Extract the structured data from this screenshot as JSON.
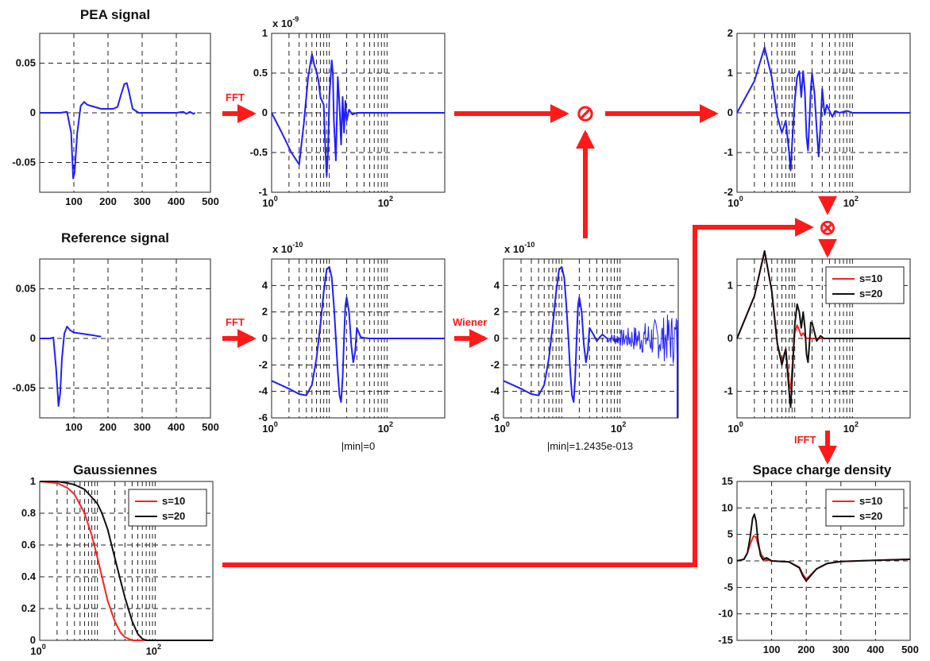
{
  "colors": {
    "blue": "#1f1fff",
    "red": "#ff2020",
    "black": "#111111",
    "arrow": "#ff1a1a"
  },
  "titles": {
    "pea": "PEA signal",
    "reference": "Reference signal",
    "gaussiennes": "Gaussiennes",
    "space_charge": "Space charge density"
  },
  "operations": {
    "fft1": "FFT",
    "fft2": "FFT",
    "wiener": "Wiener",
    "ifft": "IFFT"
  },
  "operators": {
    "divide": "⊘",
    "multiply": "⊗"
  },
  "notes": {
    "min_ref_fft": "|min|=0",
    "min_wiener": "|min|=1.2435e-013"
  },
  "multipliers": {
    "pea_fft": "x 10",
    "pea_fft_exp": "-9",
    "ref_fft": "x 10",
    "ref_fft_exp": "-10",
    "wiener": "x 10",
    "wiener_exp": "-10"
  },
  "legend": {
    "s10": "s=10",
    "s20": "s=20"
  },
  "ticks": {
    "pea_y": [
      "0.05",
      "0",
      "-0.05"
    ],
    "time_x": [
      "100",
      "200",
      "300",
      "400",
      "500"
    ],
    "pea_fft_y": [
      "1",
      "0.5",
      "0",
      "-0.5",
      "-1"
    ],
    "log_base": "10",
    "log_x": [
      "0",
      "2"
    ],
    "ref_y": [
      "0.05",
      "0",
      "-0.05"
    ],
    "ref_fft_y": [
      "4",
      "2",
      "0",
      "-2",
      "-4",
      "-6"
    ],
    "gauss_y": [
      "1",
      "0.8",
      "0.6",
      "0.4",
      "0.2",
      "0"
    ],
    "ratio_y": [
      "2",
      "1",
      "0",
      "-1",
      "-2"
    ],
    "filtered_y": [
      "1",
      "0",
      "-1"
    ],
    "scd_y": [
      "15",
      "10",
      "5",
      "0",
      "-5",
      "-10",
      "-15"
    ]
  },
  "chart_data": [
    {
      "type": "line",
      "title": "PEA signal",
      "xlim": [
        0,
        500
      ],
      "ylim": [
        -0.08,
        0.08
      ],
      "grid": true,
      "series": [
        {
          "color": "#1f1fff",
          "x": [
            0,
            60,
            80,
            92,
            98,
            102,
            110,
            120,
            130,
            140,
            160,
            180,
            200,
            215,
            228,
            238,
            248,
            255,
            262,
            272,
            290,
            320,
            360,
            400,
            420,
            430,
            440,
            450,
            455
          ],
          "y": [
            0,
            0,
            0.001,
            -0.02,
            -0.066,
            -0.06,
            -0.02,
            0.007,
            0.011,
            0.008,
            0.006,
            0.004,
            0.004,
            0.004,
            0.006,
            0.018,
            0.029,
            0.03,
            0.02,
            0.004,
            0,
            0,
            0,
            0,
            0.001,
            -0.001,
            0.001,
            -0.001,
            0
          ]
        }
      ]
    },
    {
      "type": "line",
      "title": "",
      "xscale": "log",
      "xlim": [
        1,
        1000
      ],
      "ylim": [
        -1,
        1
      ],
      "multiplier": "x 10^-9",
      "grid": true,
      "series": [
        {
          "color": "#1f1fff",
          "x": [
            1,
            1.5,
            2.2,
            3,
            3.6,
            4.3,
            5,
            5.5,
            6,
            6.5,
            7,
            8,
            8.5,
            9,
            9.5,
            10,
            11,
            11.5,
            12,
            13,
            13.5,
            14,
            15,
            16,
            17,
            18,
            19,
            20,
            22,
            25,
            30,
            40,
            1000
          ],
          "y": [
            0,
            -0.25,
            -0.5,
            -0.65,
            -0.15,
            0.45,
            0.74,
            0.6,
            0.52,
            0.4,
            0.2,
            0.1,
            -0.4,
            -0.8,
            -0.5,
            0.2,
            0.66,
            0.5,
            -0.1,
            -0.6,
            -0.1,
            0.45,
            0.1,
            -0.4,
            0.2,
            -0.25,
            0.15,
            -0.1,
            0.04,
            -0.02,
            0,
            0,
            0
          ]
        }
      ]
    },
    {
      "type": "line",
      "title": "",
      "xscale": "log",
      "xlim": [
        1,
        1000
      ],
      "ylim": [
        -2,
        2
      ],
      "grid": true,
      "series": [
        {
          "color": "#1f1fff",
          "x": [
            1,
            2,
            3,
            4,
            5,
            6,
            7,
            8,
            8.5,
            9,
            10,
            11,
            12,
            13,
            14,
            15,
            16,
            17,
            18,
            19,
            20,
            22,
            24,
            26,
            28,
            30,
            33,
            36,
            40,
            45,
            50,
            60,
            80,
            100,
            150,
            300,
            1000
          ],
          "y": [
            0,
            0.8,
            1.65,
            0.9,
            -0.1,
            -0.5,
            -0.2,
            -1.0,
            -1.45,
            -0.8,
            0.3,
            0.9,
            1.05,
            0.4,
            1.05,
            0.5,
            -0.6,
            -0.95,
            -0.2,
            0.6,
            1.0,
            0.5,
            -0.4,
            -1.1,
            -0.3,
            0.6,
            -0.05,
            0.2,
            0.05,
            -0.1,
            0.05,
            0,
            0.05,
            0,
            0,
            0,
            0
          ]
        }
      ]
    },
    {
      "type": "line",
      "title": "Reference signal",
      "xlim": [
        0,
        500
      ],
      "ylim": [
        -0.08,
        0.08
      ],
      "grid": true,
      "series": [
        {
          "color": "#1f1fff",
          "x": [
            0,
            30,
            40,
            48,
            55,
            60,
            65,
            72,
            80,
            90,
            100,
            120,
            140,
            160,
            175,
            180
          ],
          "y": [
            0,
            0,
            0.001,
            -0.03,
            -0.068,
            -0.055,
            -0.02,
            0.005,
            0.012,
            0.008,
            0.006,
            0.005,
            0.004,
            0.003,
            0.002,
            0.002
          ]
        }
      ]
    },
    {
      "type": "line",
      "title": "",
      "xscale": "log",
      "xlim": [
        1,
        1000
      ],
      "ylim": [
        -6,
        6
      ],
      "multiplier": "x 10^-10",
      "grid": true,
      "series": [
        {
          "color": "#1f1fff",
          "x": [
            1,
            2,
            3,
            4,
            5,
            6,
            7,
            8,
            9,
            10,
            11,
            12,
            13,
            14,
            15,
            16,
            17,
            18,
            19,
            20,
            22,
            24,
            26,
            28,
            30,
            35,
            40,
            50,
            1000
          ],
          "y": [
            -3.2,
            -3.8,
            -4.2,
            -4.3,
            -3.5,
            -1.5,
            1.0,
            3.5,
            5.2,
            5.4,
            4.6,
            2.5,
            0,
            -2.5,
            -4.3,
            -4.8,
            -3.0,
            0,
            2.5,
            3.1,
            2.0,
            -0.5,
            -1.8,
            -1.0,
            0.8,
            0.1,
            0.05,
            0,
            0
          ]
        }
      ]
    },
    {
      "type": "line",
      "title": "",
      "xscale": "log",
      "xlim": [
        1,
        1000
      ],
      "ylim": [
        -6,
        6
      ],
      "multiplier": "x 10^-10",
      "grid": true,
      "series": [
        {
          "color": "#1f1fff",
          "x": [
            1,
            2,
            3,
            4,
            5,
            6,
            7,
            8,
            9,
            10,
            11,
            12,
            13,
            14,
            15,
            16,
            17,
            18,
            19,
            20,
            22,
            24,
            26,
            28,
            30,
            35,
            40,
            45,
            50,
            60
          ],
          "y": [
            -3.2,
            -3.8,
            -4.2,
            -4.3,
            -3.5,
            -1.5,
            1.0,
            3.5,
            5.2,
            5.4,
            4.6,
            2.5,
            0,
            -2.5,
            -4.3,
            -4.8,
            -3.0,
            0,
            2.5,
            3.1,
            2.0,
            -0.5,
            -1.8,
            -1.0,
            0.8,
            0.3,
            -0.2,
            0.1,
            0.3,
            0
          ]
        }
      ]
    },
    {
      "type": "line",
      "title": "Gaussiennes",
      "xscale": "log",
      "xlim": [
        1,
        1000
      ],
      "ylim": [
        0,
        1
      ],
      "grid": true,
      "legend": "top-right",
      "series": [
        {
          "name": "s=10",
          "color": "#ff2020",
          "x": [
            1,
            2,
            3,
            4,
            6,
            8,
            10,
            12,
            15,
            20,
            25,
            30,
            40,
            50,
            70,
            100,
            1000
          ],
          "y": [
            1,
            0.99,
            0.96,
            0.92,
            0.8,
            0.66,
            0.52,
            0.4,
            0.25,
            0.12,
            0.05,
            0.02,
            0,
            0,
            0,
            0,
            0
          ]
        },
        {
          "name": "s=20",
          "color": "#111111",
          "x": [
            1,
            2,
            3,
            4,
            6,
            8,
            10,
            12,
            15,
            20,
            25,
            30,
            40,
            50,
            60,
            70,
            100,
            1000
          ],
          "y": [
            1,
            1,
            0.99,
            0.98,
            0.95,
            0.9,
            0.86,
            0.8,
            0.7,
            0.52,
            0.38,
            0.27,
            0.12,
            0.04,
            0.01,
            0,
            0,
            0
          ]
        }
      ]
    },
    {
      "type": "line",
      "title": "",
      "xscale": "log",
      "xlim": [
        1,
        1000
      ],
      "ylim": [
        -1.5,
        1.5
      ],
      "grid": true,
      "legend": "top-right",
      "series": [
        {
          "name": "s=10",
          "color": "#ff2020",
          "x": [
            1,
            2,
            3,
            4,
            5,
            6,
            7,
            8,
            8.5,
            9,
            10,
            11,
            12,
            13,
            14,
            16,
            20,
            25,
            30,
            40,
            1000
          ],
          "y": [
            0,
            0.8,
            1.65,
            0.9,
            -0.1,
            -0.45,
            -0.2,
            -0.85,
            -0.95,
            -0.6,
            0.1,
            0.25,
            0.15,
            0.05,
            0.1,
            0,
            0,
            0,
            0,
            0,
            0
          ]
        },
        {
          "name": "s=20",
          "color": "#111111",
          "x": [
            1,
            2,
            3,
            4,
            5,
            6,
            7,
            8,
            8.5,
            9,
            10,
            11,
            12,
            13,
            14,
            15,
            16,
            17,
            18,
            19,
            20,
            24,
            28,
            32,
            40,
            1000
          ],
          "y": [
            0,
            0.8,
            1.65,
            0.9,
            -0.1,
            -0.5,
            -0.2,
            -1.0,
            -1.3,
            -0.8,
            0.25,
            0.65,
            0.5,
            0.2,
            0.5,
            0.2,
            -0.3,
            -0.45,
            -0.1,
            0.3,
            0.3,
            -0.05,
            0.05,
            0,
            0,
            0
          ]
        }
      ]
    },
    {
      "type": "line",
      "title": "Space charge density",
      "xlim": [
        0,
        500
      ],
      "ylim": [
        -15,
        15
      ],
      "grid": true,
      "legend": "top-right",
      "series": [
        {
          "name": "s=10",
          "color": "#ff2020",
          "x": [
            0,
            20,
            30,
            40,
            48,
            55,
            62,
            70,
            80,
            100,
            150,
            180,
            190,
            200,
            210,
            230,
            260,
            300,
            400,
            500
          ],
          "y": [
            0,
            0.3,
            1.5,
            3.5,
            4.7,
            4.5,
            2.8,
            1.2,
            0.3,
            0,
            -0.2,
            -1.2,
            -2.5,
            -3.4,
            -2.8,
            -1.5,
            -0.5,
            -0.1,
            0.1,
            0.3
          ]
        },
        {
          "name": "s=20",
          "color": "#111111",
          "x": [
            0,
            20,
            30,
            38,
            45,
            50,
            55,
            60,
            68,
            75,
            85,
            100,
            150,
            180,
            190,
            200,
            210,
            230,
            260,
            300,
            400,
            500
          ],
          "y": [
            0,
            0.3,
            1.5,
            4.5,
            8.0,
            8.8,
            7.5,
            4.0,
            1.0,
            0.2,
            0.6,
            0,
            -0.2,
            -1.3,
            -2.8,
            -3.8,
            -3.0,
            -1.5,
            -0.5,
            -0.1,
            0.1,
            0.3
          ]
        }
      ]
    }
  ]
}
